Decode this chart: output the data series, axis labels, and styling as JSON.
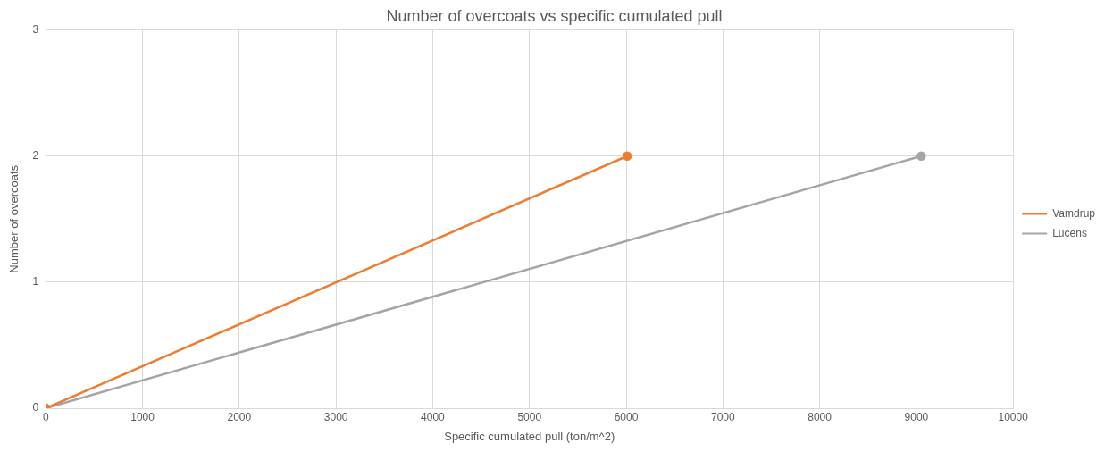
{
  "chart_data": {
    "type": "line",
    "title": "Number of overcoats vs specific cumulated pull",
    "xlabel": "Specific cumulated pull (ton/m^2)",
    "ylabel": "Number of overcoats",
    "series": [
      {
        "name": "Vamdrup",
        "color": "#ed7d31",
        "x": [
          0,
          6010
        ],
        "values": [
          0,
          2
        ]
      },
      {
        "name": "Lucens",
        "color": "#a5a5a5",
        "x": [
          0,
          9050
        ],
        "values": [
          0,
          2
        ]
      }
    ],
    "xlim": [
      0,
      10000
    ],
    "xticks": [
      0,
      1000,
      2000,
      3000,
      4000,
      5000,
      6000,
      7000,
      8000,
      9000,
      10000
    ],
    "ylim": [
      0,
      3
    ],
    "yticks": [
      0,
      1,
      2,
      3
    ],
    "grid": true,
    "legend": "right",
    "marker": "circle"
  }
}
